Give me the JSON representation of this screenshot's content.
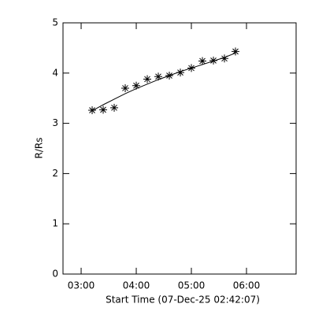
{
  "chart_data": {
    "type": "scatter",
    "xlabel": "Start Time (07-Dec-25 02:42:07)",
    "ylabel": "R/Rs",
    "x": [
      3.2,
      3.4,
      3.6,
      3.8,
      4.0,
      4.2,
      4.4,
      4.6,
      4.8,
      5.0,
      5.2,
      5.4,
      5.6,
      5.8
    ],
    "series": [
      {
        "values": [
          3.26,
          3.27,
          3.31,
          3.7,
          3.75,
          3.88,
          3.93,
          3.95,
          4.01,
          4.1,
          4.24,
          4.25,
          4.29,
          4.43
        ],
        "color": "#000000",
        "marker": "asterisk"
      },
      {
        "values": [
          3.25,
          3.37,
          3.48,
          3.59,
          3.69,
          3.78,
          3.87,
          3.95,
          4.03,
          4.1,
          4.17,
          4.24,
          4.31,
          4.4
        ],
        "color": "#000000",
        "marker": "line"
      }
    ],
    "xlim": [
      2.671,
      6.9
    ],
    "ylim": [
      0,
      5
    ],
    "xticks": [
      {
        "value": 3,
        "label": "03:00"
      },
      {
        "value": 4,
        "label": "04:00"
      },
      {
        "value": 5,
        "label": "05:00"
      },
      {
        "value": 6,
        "label": "06:00"
      }
    ],
    "yticks": [
      0,
      1,
      2,
      3,
      4,
      5
    ]
  }
}
